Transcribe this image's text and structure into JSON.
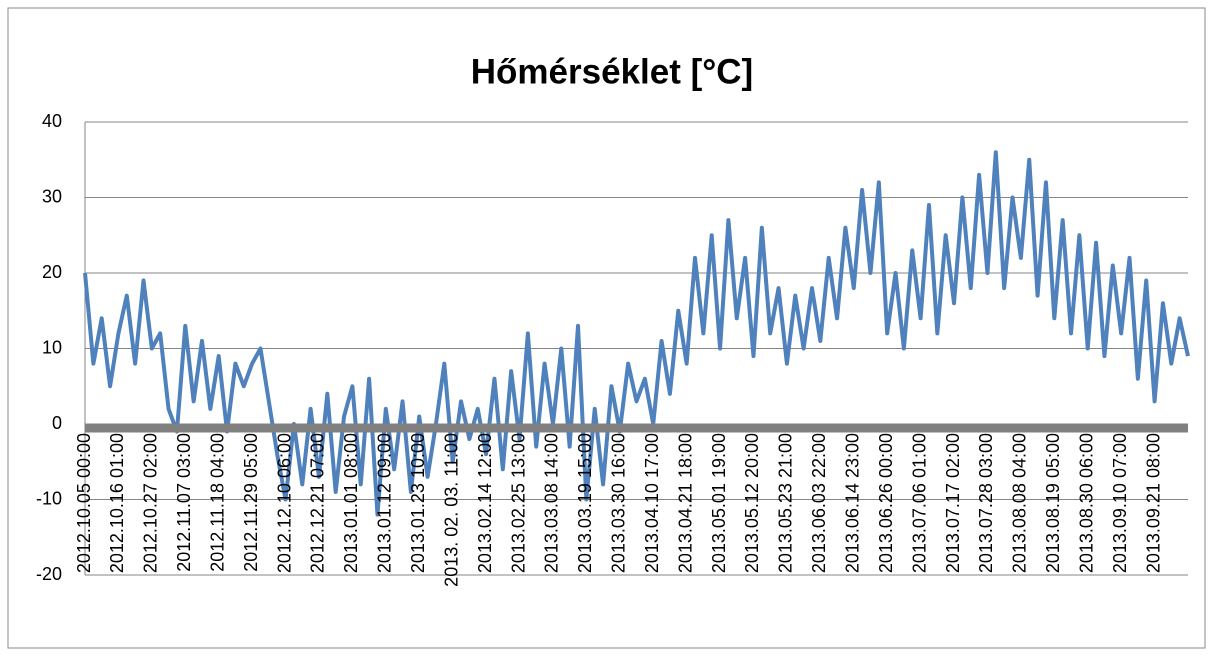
{
  "chart_data": {
    "type": "line",
    "title": "Hőmérséklet [°C]",
    "categories": [
      "2012.10.05 00:00",
      null,
      null,
      null,
      "2012.10.16 01:00",
      null,
      null,
      null,
      "2012.10.27 02:00",
      null,
      null,
      null,
      "2012.11.07 03:00",
      null,
      null,
      null,
      "2012.11.18 04:00",
      null,
      null,
      null,
      "2012.11.29 05:00",
      null,
      null,
      null,
      "2012.12.10 06:00",
      null,
      null,
      null,
      "2012.12.21 07:00",
      null,
      null,
      null,
      "2013.01.01 08:00",
      null,
      null,
      null,
      "2013.01.12 09:00",
      null,
      null,
      null,
      "2013.01.23 10:00",
      null,
      null,
      null,
      "2013. 02. 03. 11:00",
      null,
      null,
      null,
      "2013.02.14 12:00",
      null,
      null,
      null,
      "2013.02.25 13:00",
      null,
      null,
      null,
      "2013.03.08 14:00",
      null,
      null,
      null,
      "2013.03.19 15:00",
      null,
      null,
      null,
      "2013.03.30 16:00",
      null,
      null,
      null,
      "2013.04.10 17:00",
      null,
      null,
      null,
      "2013.04.21 18:00",
      null,
      null,
      null,
      "2013.05.01 19:00",
      null,
      null,
      null,
      "2013.05.12 20:00",
      null,
      null,
      null,
      "2013.05.23 21:00",
      null,
      null,
      null,
      "2013.06.03 22:00",
      null,
      null,
      null,
      "2013.06.14 23:00",
      null,
      null,
      null,
      "2013.06.26 00:00",
      null,
      null,
      null,
      "2013.07.06 01:00",
      null,
      null,
      null,
      "2013.07.17 02:00",
      null,
      null,
      null,
      "2013.07.28 03:00",
      null,
      null,
      null,
      "2013.08.08 04:00",
      null,
      null,
      null,
      "2013.08.19 05:00",
      null,
      null,
      null,
      "2013.08.30 06:00",
      null,
      null,
      null,
      "2013.09.10 07:00",
      null,
      null,
      null,
      "2013.09.21 08:00",
      null,
      null,
      null,
      null
    ],
    "values": [
      20,
      8,
      14,
      5,
      12,
      17,
      8,
      19,
      10,
      12,
      2,
      -1,
      13,
      3,
      11,
      2,
      9,
      -1,
      8,
      5,
      8,
      10,
      3,
      -4,
      -10,
      0,
      -8,
      2,
      -7,
      4,
      -9,
      1,
      5,
      -8,
      6,
      -12,
      2,
      -6,
      3,
      -9,
      1,
      -7,
      0,
      8,
      -5,
      3,
      -2,
      2,
      -4,
      6,
      -6,
      7,
      -2,
      12,
      -3,
      8,
      0,
      10,
      -3,
      13,
      -10,
      2,
      -8,
      5,
      -1,
      8,
      3,
      6,
      0,
      11,
      4,
      15,
      8,
      22,
      12,
      25,
      10,
      27,
      14,
      22,
      9,
      26,
      12,
      18,
      8,
      17,
      10,
      18,
      11,
      22,
      14,
      26,
      18,
      31,
      20,
      32,
      12,
      20,
      10,
      23,
      14,
      29,
      12,
      25,
      16,
      30,
      18,
      33,
      20,
      36,
      18,
      30,
      22,
      35,
      17,
      32,
      14,
      27,
      12,
      25,
      10,
      24,
      9,
      21,
      12,
      22,
      6,
      19,
      3,
      16,
      8,
      14,
      9
    ],
    "color": "#4f81bd",
    "ylim": [
      -20,
      40
    ],
    "yticks": [
      -20,
      -10,
      0,
      10,
      20,
      30,
      40
    ],
    "grid": true
  }
}
